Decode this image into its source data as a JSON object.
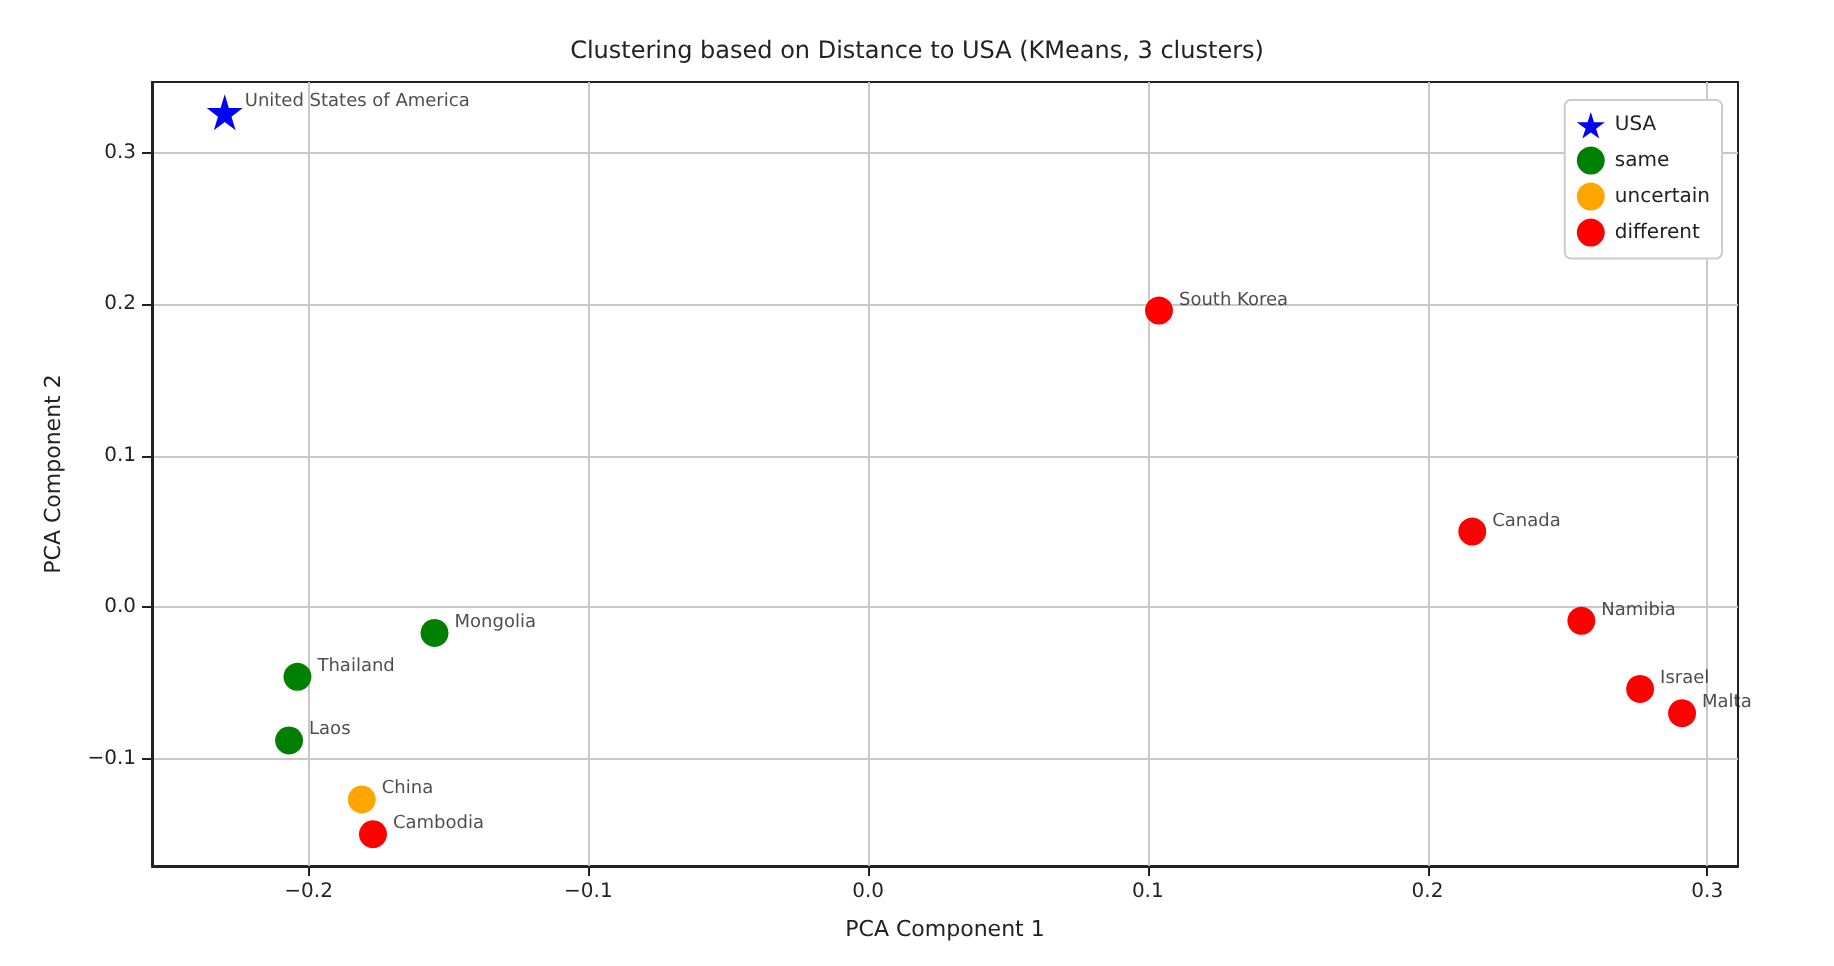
{
  "chart_data": {
    "type": "scatter",
    "title": "Clustering based on Distance to USA (KMeans, 3 clusters)",
    "xlabel": "PCA Component 1",
    "ylabel": "PCA Component 2",
    "xlim": [
      -0.256,
      0.311
    ],
    "ylim": [
      -0.171,
      0.347
    ],
    "xticks": [
      {
        "value": -0.2,
        "label": "−0.2"
      },
      {
        "value": -0.1,
        "label": "−0.1"
      },
      {
        "value": 0,
        "label": "0.0"
      },
      {
        "value": 0.1,
        "label": "0.1"
      },
      {
        "value": 0.2,
        "label": "0.2"
      },
      {
        "value": 0.3,
        "label": "0.3"
      }
    ],
    "yticks": [
      {
        "value": -0.1,
        "label": "−0.1"
      },
      {
        "value": 0,
        "label": "0.0"
      },
      {
        "value": 0.1,
        "label": "0.1"
      },
      {
        "value": 0.2,
        "label": "0.2"
      },
      {
        "value": 0.3,
        "label": "0.3"
      }
    ],
    "grid": true,
    "legend": "top right",
    "series": [
      {
        "name": "USA",
        "color": "#0000ff",
        "marker": "star",
        "x": [
          -0.23
        ],
        "values": [
          0.327
        ]
      },
      {
        "name": "same",
        "color": "#008000",
        "marker": "circle",
        "x": [
          -0.155,
          -0.204,
          -0.207
        ],
        "values": [
          -0.017,
          -0.046,
          -0.088
        ]
      },
      {
        "name": "uncertain",
        "color": "#ffa500",
        "marker": "circle",
        "x": [
          -0.181
        ],
        "values": [
          -0.127
        ]
      },
      {
        "name": "different",
        "color": "#ff0000",
        "marker": "circle",
        "x": [
          0.104,
          0.216,
          0.255,
          0.276,
          0.291,
          -0.177
        ],
        "values": [
          0.196,
          0.05,
          -0.009,
          -0.054,
          -0.07,
          -0.15
        ]
      }
    ],
    "annotations": [
      {
        "text": "United States of America",
        "x": -0.23,
        "y": 0.327
      },
      {
        "text": "South Korea",
        "x": 0.104,
        "y": 0.196
      },
      {
        "text": "Canada",
        "x": 0.216,
        "y": 0.05
      },
      {
        "text": "Namibia",
        "x": 0.255,
        "y": -0.009
      },
      {
        "text": "Israel",
        "x": 0.276,
        "y": -0.054
      },
      {
        "text": "Malta",
        "x": 0.291,
        "y": -0.07
      },
      {
        "text": "Mongolia",
        "x": -0.155,
        "y": -0.017
      },
      {
        "text": "Thailand",
        "x": -0.204,
        "y": -0.046
      },
      {
        "text": "Laos",
        "x": -0.207,
        "y": -0.088
      },
      {
        "text": "China",
        "x": -0.181,
        "y": -0.127
      },
      {
        "text": "Cambodia",
        "x": -0.177,
        "y": -0.15
      }
    ]
  }
}
